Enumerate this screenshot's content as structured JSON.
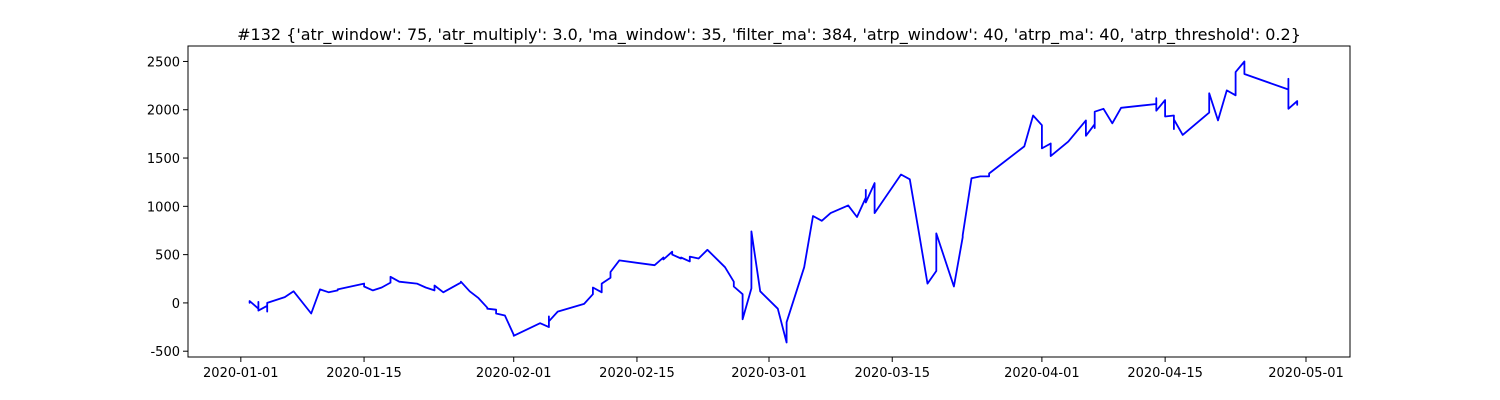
{
  "chart_data": {
    "type": "line",
    "title": "#132 {'atr_window': 75, 'atr_multiply': 3.0, 'ma_window': 35, 'filter_ma': 384, 'atrp_window': 40, 'atrp_ma': 40, 'atrp_threshold': 0.2}",
    "xlabel": "",
    "ylabel": "",
    "x_type": "date",
    "xlim": [
      "2019-12-26",
      "2020-05-06"
    ],
    "ylim": [
      -560,
      2660
    ],
    "x_ticks": [
      "2020-01-01",
      "2020-01-15",
      "2020-02-01",
      "2020-02-15",
      "2020-03-01",
      "2020-03-15",
      "2020-04-01",
      "2020-04-15",
      "2020-05-01"
    ],
    "y_ticks": [
      -500,
      0,
      500,
      1000,
      1500,
      2000,
      2500
    ],
    "grid": false,
    "line_color": "#0000ff",
    "series": [
      {
        "x": [
          "2020-01-02",
          "2020-01-02",
          "2020-01-03",
          "2020-01-03",
          "2020-01-03",
          "2020-01-03",
          "2020-01-03",
          "2020-01-04",
          "2020-01-04",
          "2020-01-04",
          "2020-01-06",
          "2020-01-07",
          "2020-01-09",
          "2020-01-10",
          "2020-01-11",
          "2020-01-12",
          "2020-01-12",
          "2020-01-15",
          "2020-01-15",
          "2020-01-16",
          "2020-01-17",
          "2020-01-18",
          "2020-01-18",
          "2020-01-19",
          "2020-01-21",
          "2020-01-22",
          "2020-01-23",
          "2020-01-23",
          "2020-01-24",
          "2020-01-26",
          "2020-01-26",
          "2020-01-27",
          "2020-01-28",
          "2020-01-29",
          "2020-01-29",
          "2020-01-30",
          "2020-01-30",
          "2020-01-31",
          "2020-01-31",
          "2020-02-01",
          "2020-02-01",
          "2020-02-04",
          "2020-02-05",
          "2020-02-05",
          "2020-02-05",
          "2020-02-06",
          "2020-02-09",
          "2020-02-10",
          "2020-02-10",
          "2020-02-11",
          "2020-02-11",
          "2020-02-11",
          "2020-02-12",
          "2020-02-12",
          "2020-02-13",
          "2020-02-17",
          "2020-02-18",
          "2020-02-18",
          "2020-02-19",
          "2020-02-19",
          "2020-02-20",
          "2020-02-20",
          "2020-02-21",
          "2020-02-21",
          "2020-02-22",
          "2020-02-23",
          "2020-02-25",
          "2020-02-26",
          "2020-02-26",
          "2020-02-27",
          "2020-02-27",
          "2020-02-27",
          "2020-02-27",
          "2020-02-28",
          "2020-02-28",
          "2020-02-29",
          "2020-03-02",
          "2020-03-03",
          "2020-03-03",
          "2020-03-05",
          "2020-03-06",
          "2020-03-07",
          "2020-03-08",
          "2020-03-10",
          "2020-03-11",
          "2020-03-12",
          "2020-03-12",
          "2020-03-12",
          "2020-03-13",
          "2020-03-13",
          "2020-03-16",
          "2020-03-17",
          "2020-03-18",
          "2020-03-19",
          "2020-03-20",
          "2020-03-20",
          "2020-03-22",
          "2020-03-23",
          "2020-03-23",
          "2020-03-24",
          "2020-03-25",
          "2020-03-26",
          "2020-03-26",
          "2020-03-30",
          "2020-03-31",
          "2020-04-01",
          "2020-04-01",
          "2020-04-01",
          "2020-04-02",
          "2020-04-02",
          "2020-04-04",
          "2020-04-06",
          "2020-04-06",
          "2020-04-07",
          "2020-04-07",
          "2020-04-07",
          "2020-04-08",
          "2020-04-09",
          "2020-04-10",
          "2020-04-14",
          "2020-04-14",
          "2020-04-14",
          "2020-04-15",
          "2020-04-15",
          "2020-04-15",
          "2020-04-16",
          "2020-04-16",
          "2020-04-16",
          "2020-04-17",
          "2020-04-20",
          "2020-04-20",
          "2020-04-21",
          "2020-04-22",
          "2020-04-23",
          "2020-04-23",
          "2020-04-24",
          "2020-04-24",
          "2020-04-29",
          "2020-04-29",
          "2020-04-29",
          "2020-04-30",
          "2020-04-30"
        ],
        "y": [
          0,
          20,
          -60,
          10,
          -50,
          -40,
          -80,
          -30,
          -90,
          0,
          60,
          120,
          -110,
          140,
          110,
          130,
          140,
          200,
          170,
          130,
          160,
          210,
          270,
          220,
          200,
          160,
          130,
          180,
          110,
          210,
          220,
          120,
          50,
          -50,
          -60,
          -70,
          -110,
          -130,
          -130,
          -330,
          -340,
          -210,
          -250,
          -140,
          -190,
          -90,
          -10,
          90,
          160,
          110,
          180,
          200,
          260,
          320,
          440,
          390,
          470,
          450,
          530,
          500,
          460,
          470,
          430,
          480,
          460,
          550,
          370,
          220,
          170,
          90,
          10,
          -100,
          -170,
          150,
          740,
          120,
          -60,
          -410,
          -200,
          370,
          900,
          850,
          930,
          1010,
          890,
          1090,
          1170,
          1040,
          1240,
          930,
          1330,
          1280,
          740,
          200,
          330,
          720,
          170,
          680,
          700,
          1290,
          1310,
          1310,
          1340,
          1620,
          1940,
          1840,
          1780,
          1600,
          1650,
          1520,
          1670,
          1890,
          1730,
          1850,
          1810,
          1980,
          2010,
          1860,
          2020,
          2060,
          2120,
          1990,
          2100,
          2010,
          1930,
          1940,
          1800,
          1900,
          1740,
          1970,
          2170,
          1890,
          2200,
          2150,
          2390,
          2500,
          2370,
          2210,
          2320,
          2010,
          2090,
          2050
        ]
      }
    ]
  }
}
